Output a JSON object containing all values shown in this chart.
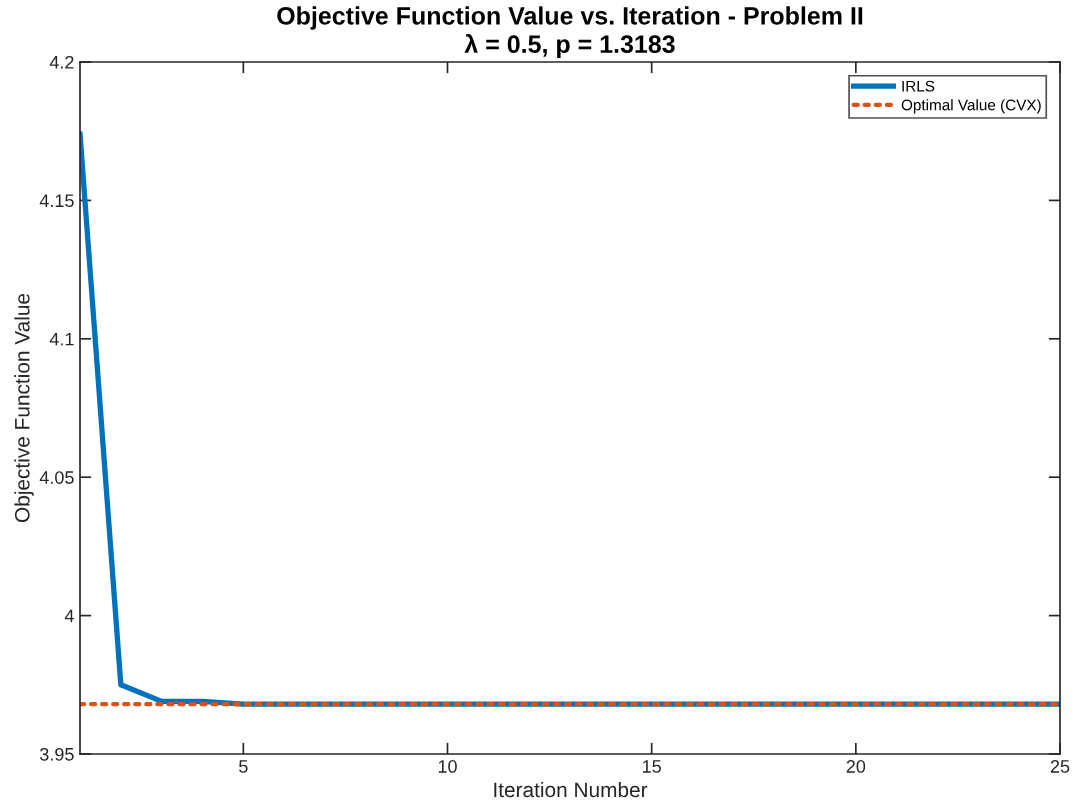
{
  "chart_data": {
    "type": "line",
    "title": "Objective Function Value vs. Iteration - Problem II",
    "subtitle": "λ = 0.5, p = 1.3183",
    "xlabel": "Iteration Number",
    "ylabel": "Objective Function Value",
    "series": [
      {
        "name": "IRLS",
        "color": "#0072bd",
        "line_style": "solid",
        "x": [
          1,
          2,
          3,
          4,
          5,
          6,
          7,
          8,
          9,
          10,
          11,
          12,
          13,
          14,
          15,
          16,
          17,
          18,
          19,
          20,
          21,
          22,
          23,
          24,
          25
        ],
        "values": [
          4.174,
          3.975,
          3.969,
          3.969,
          3.968,
          3.968,
          3.968,
          3.968,
          3.968,
          3.968,
          3.968,
          3.968,
          3.968,
          3.968,
          3.968,
          3.968,
          3.968,
          3.968,
          3.968,
          3.968,
          3.968,
          3.968,
          3.968,
          3.968,
          3.968
        ]
      },
      {
        "name": "Optimal Value (CVX)",
        "color": "#d95319",
        "line_style": "dotted",
        "x": [
          1,
          25
        ],
        "values": [
          3.968,
          3.968
        ]
      }
    ],
    "xlim": [
      1,
      25
    ],
    "ylim": [
      3.95,
      4.2
    ],
    "xticks": [
      5,
      10,
      15,
      20,
      25
    ],
    "yticks": [
      3.95,
      4,
      4.05,
      4.1,
      4.15,
      4.2
    ],
    "grid": false,
    "legend": "top right",
    "marker": "none"
  }
}
